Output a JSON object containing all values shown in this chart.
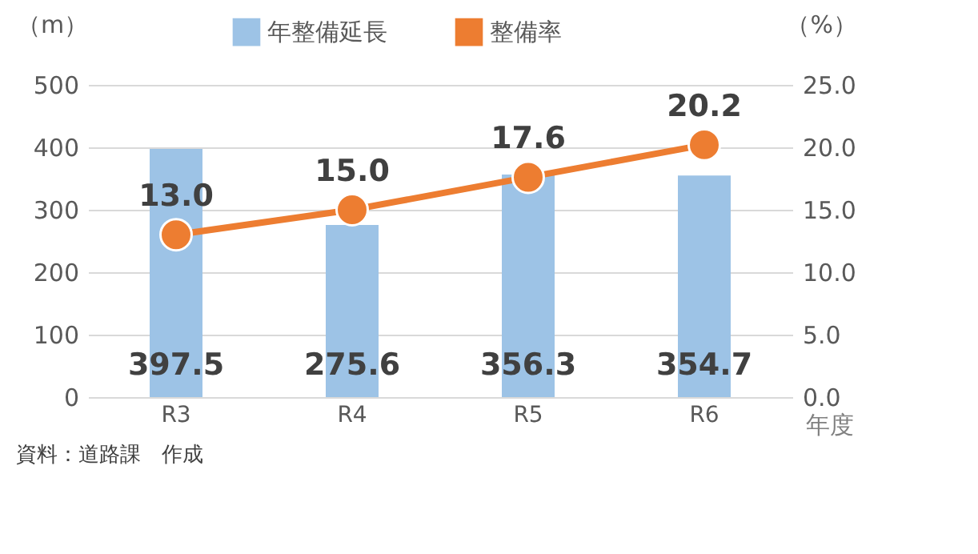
{
  "chart_data": {
    "type": "bar",
    "categories": [
      "R3",
      "R4",
      "R5",
      "R6"
    ],
    "series": [
      {
        "name": "年整備延長",
        "color": "#9dc3e6",
        "values": [
          397.5,
          275.6,
          356.3,
          354.7
        ],
        "value_labels": [
          "397.5",
          "275.6",
          "356.3",
          "354.7"
        ]
      },
      {
        "name": "整備率",
        "type": "line",
        "axis": "y2",
        "color": "#ed7d31",
        "values": [
          13.0,
          15.0,
          17.6,
          20.2
        ],
        "value_labels": [
          "13.0",
          "15.0",
          "17.6",
          "20.2"
        ]
      }
    ],
    "ylabel": "（m）",
    "y2label": "（%）",
    "xlabel": "年度",
    "ylim": [
      0,
      500
    ],
    "yticks": [
      0,
      100,
      200,
      300,
      400,
      500
    ],
    "y2lim": [
      0,
      25
    ],
    "y2ticks": [
      {
        "value": 0,
        "label": "0.0"
      },
      {
        "value": 5,
        "label": "5.0"
      },
      {
        "value": 10,
        "label": "10.0"
      },
      {
        "value": 15,
        "label": "15.0"
      },
      {
        "value": 20,
        "label": "20.0"
      },
      {
        "value": 25,
        "label": "25.0"
      }
    ],
    "annotations": [
      "資料：道路課　作成"
    ],
    "grid": "y",
    "legend": "top",
    "marker": "circle",
    "line_style": "solid"
  }
}
